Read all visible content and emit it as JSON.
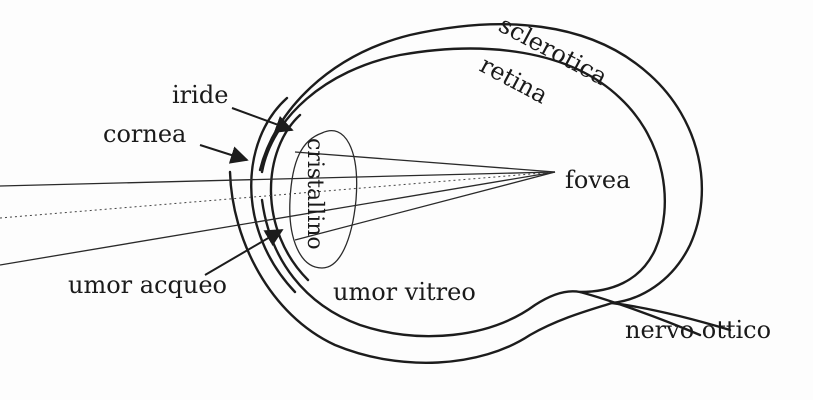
{
  "labels": {
    "sclerotica": "sclerotica",
    "retina": "retina",
    "iride": "iride",
    "cornea": "cornea",
    "cristallino": "cristallino",
    "fovea": "fovea",
    "umor_acqueo": "umor acqueo",
    "umor_vitreo": "umor vitreo",
    "nervo_ottico": "nervo ottico"
  },
  "colors": {
    "ink": "#1c1c1c",
    "paper": "#fdfdfd"
  }
}
